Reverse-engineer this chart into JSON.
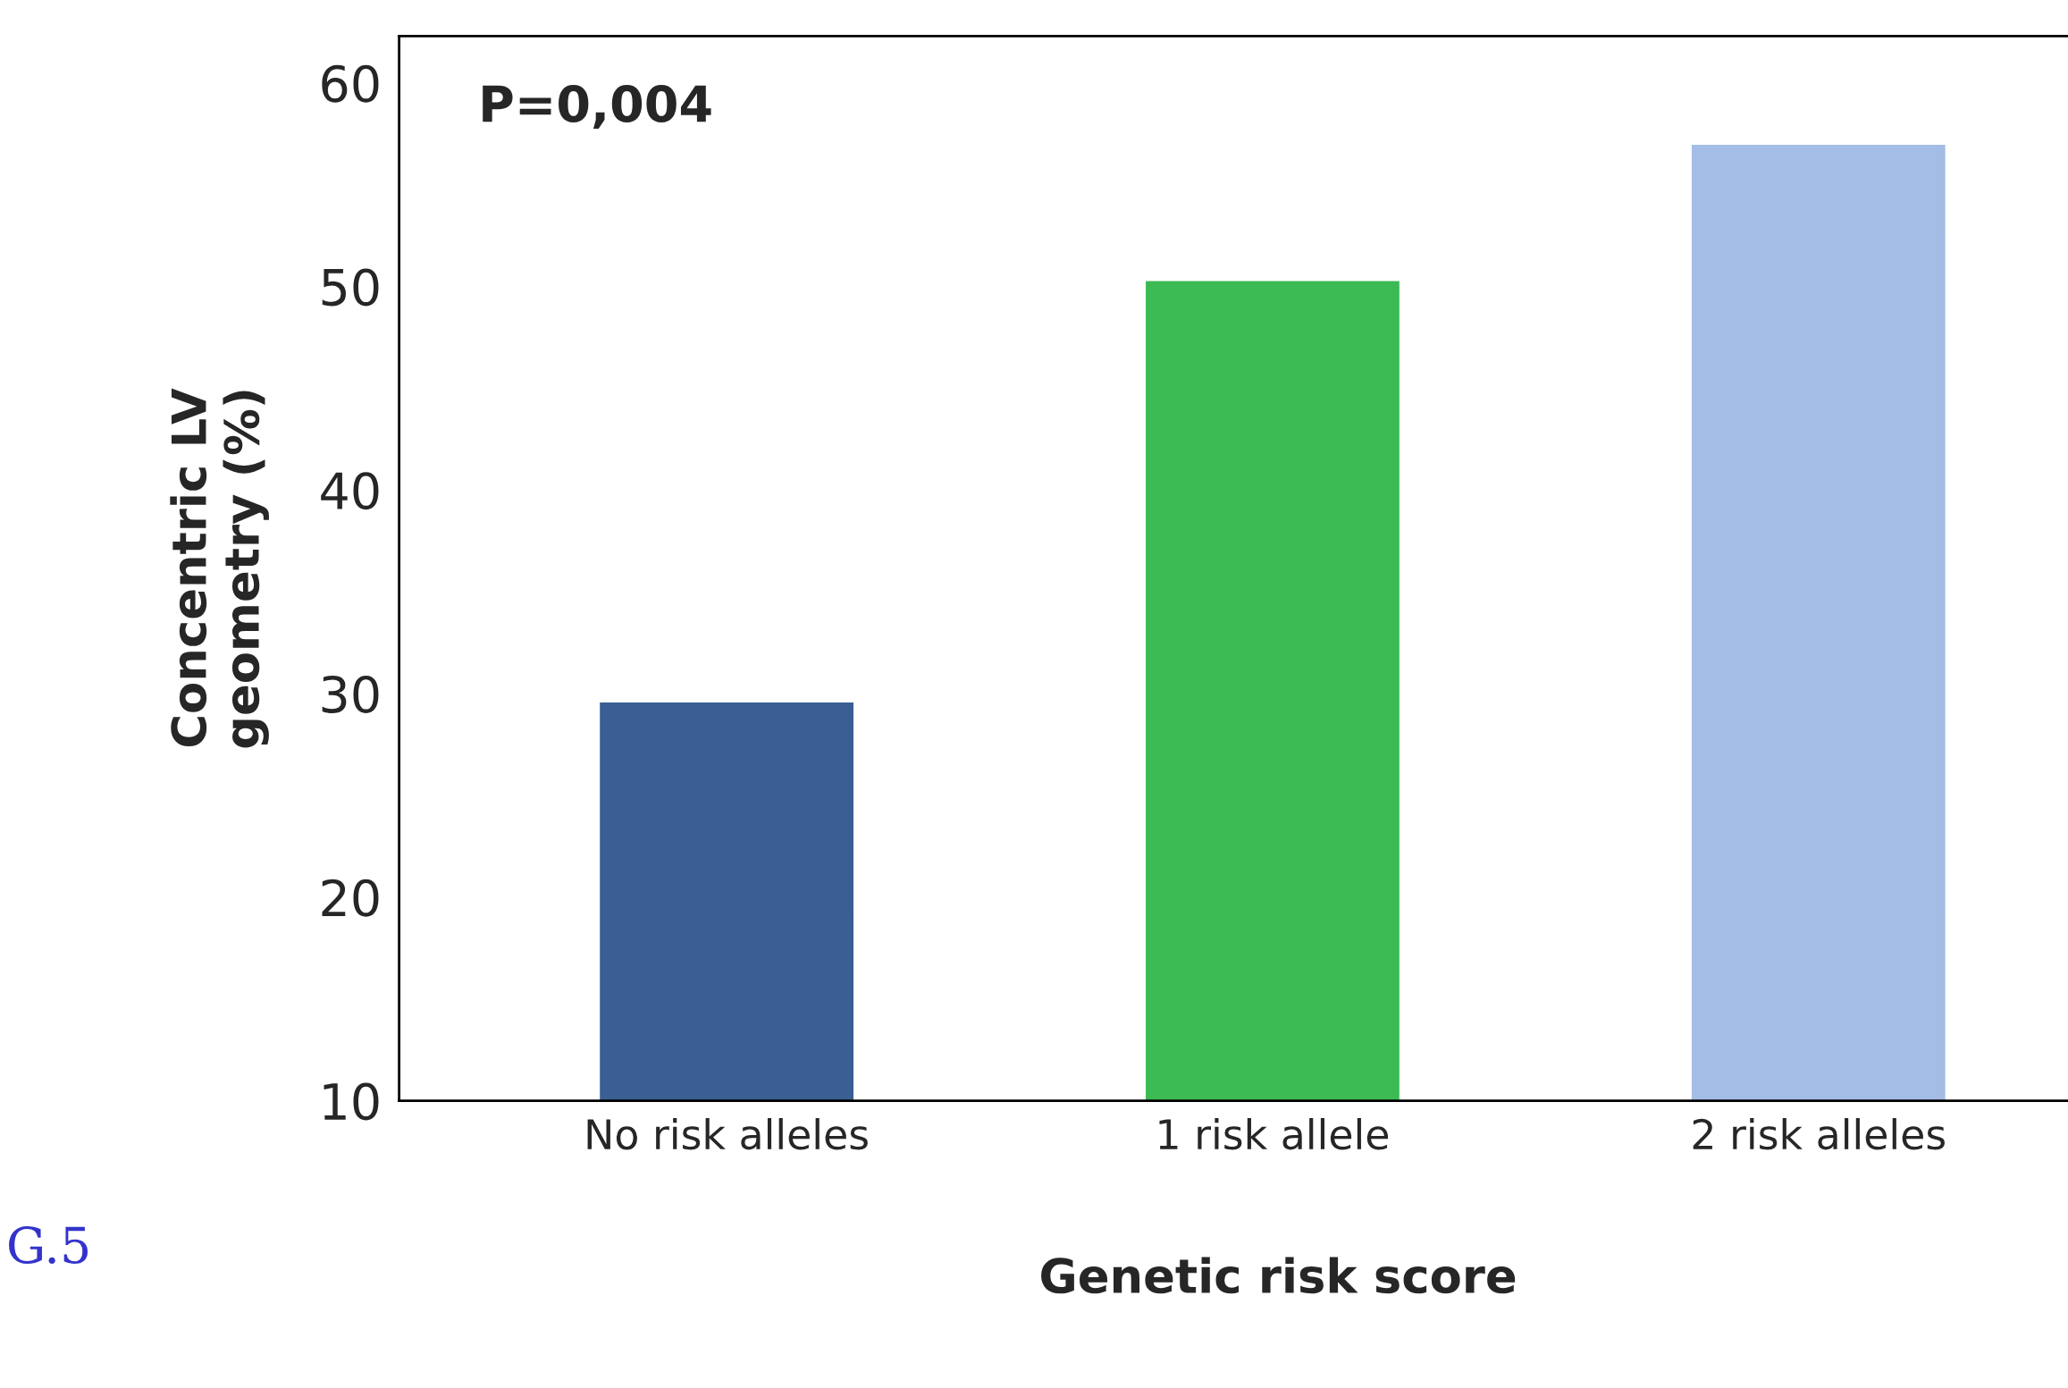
{
  "chart_data": {
    "type": "bar",
    "xlabel": "Genetic risk score",
    "ylabel": "Concentric LV\ngeometry (%)",
    "categories": [
      "No risk alleles",
      "1 risk allele",
      "2 risk alleles"
    ],
    "values": [
      29.5,
      50.2,
      56.9
    ],
    "colors": [
      "#3a5f92",
      "#3cba54",
      "#a4bde6"
    ],
    "ylim": [
      10,
      62.3
    ],
    "yticks": [
      10,
      20,
      30,
      40,
      50,
      60
    ],
    "grid": false,
    "annotations": [
      "P=0,004",
      "G.5"
    ]
  }
}
